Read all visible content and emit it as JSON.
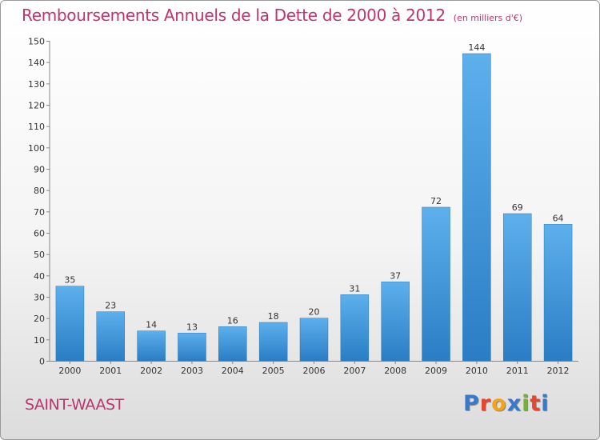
{
  "chart_data": {
    "type": "bar",
    "title": "Remboursements Annuels de la Dette de 2000 à 2012",
    "unit_label": "(en milliers d'€)",
    "categories": [
      "2000",
      "2001",
      "2002",
      "2003",
      "2004",
      "2005",
      "2006",
      "2007",
      "2008",
      "2009",
      "2010",
      "2011",
      "2012"
    ],
    "values": [
      35,
      23,
      14,
      13,
      16,
      18,
      20,
      31,
      37,
      72,
      144,
      69,
      64
    ],
    "ylim": [
      0,
      150
    ],
    "y_ticks": [
      0,
      10,
      20,
      30,
      40,
      50,
      60,
      70,
      80,
      90,
      100,
      110,
      120,
      130,
      140,
      150
    ],
    "grid": false,
    "xlabel": "",
    "ylabel": "",
    "bar_color": "#4a9fe0"
  },
  "footer": {
    "city": "SAINT-WAAST",
    "logo_text": "Proxiti"
  },
  "colors": {
    "title": "#c0336e",
    "logo": [
      "#3a78c9",
      "#e8452c",
      "#f3a21b",
      "#3a78c9",
      "#7ab03a",
      "#e8452c",
      "#3a78c9"
    ]
  }
}
